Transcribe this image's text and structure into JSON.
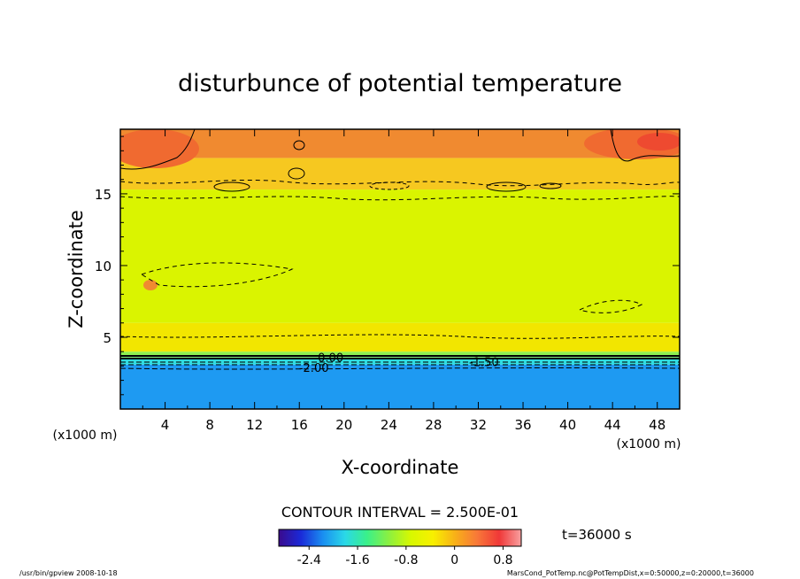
{
  "chart_data": {
    "type": "heatmap",
    "title": "disturbunce of potential temperature",
    "xlabel": "X-coordinate",
    "ylabel": "Z-coordinate",
    "x_unit_left": "(x1000 m)",
    "x_unit_right": "(x1000 m)",
    "xlim": [
      0,
      50
    ],
    "ylim": [
      0,
      19.5
    ],
    "x_ticks": [
      4,
      8,
      12,
      16,
      20,
      24,
      28,
      32,
      36,
      40,
      44,
      48
    ],
    "x_tick_labels": [
      "4",
      "8",
      "12",
      "16",
      "20",
      "24",
      "28",
      "32",
      "36",
      "40",
      "44",
      "48"
    ],
    "y_ticks": [
      5,
      10,
      15
    ],
    "y_tick_labels": [
      "5",
      "10",
      "15"
    ],
    "contour_interval_text": "CONTOUR INTERVAL = 2.500E-01",
    "time_text": "t=36000 s",
    "contour_labels": [
      {
        "text": "-2.00",
        "x": 17.3,
        "z": 2.9
      },
      {
        "text": "0.00",
        "x": 18.8,
        "z": 3.6
      },
      {
        "text": "-1.50",
        "x": 32.5,
        "z": 3.3
      }
    ],
    "colorbar": {
      "range": [
        -2.9,
        1.1
      ],
      "ticks": [
        -2.4,
        -1.6,
        -0.8,
        0,
        0.8
      ],
      "tick_labels": [
        "-2.4",
        "-1.6",
        "-0.8",
        "0",
        "0.8"
      ],
      "colors": [
        "#3a0a8c",
        "#1a2ad8",
        "#1a8ef0",
        "#2ad8e8",
        "#3af08a",
        "#8cf040",
        "#d8f800",
        "#f8f000",
        "#f8b018",
        "#f87838",
        "#f03838",
        "#f8a0a0"
      ]
    },
    "field_zones": [
      {
        "z_from": 0,
        "z_to": 3.1,
        "value": -2.2,
        "color": "#1e9af2"
      },
      {
        "z_from": 3.1,
        "z_to": 3.6,
        "value": -1.4,
        "color": "#30dce0"
      },
      {
        "z_from": 3.6,
        "z_to": 4.0,
        "value": -0.6,
        "color": "#8cf050"
      },
      {
        "z_from": 4.0,
        "z_to": 6.0,
        "value": 0.0,
        "color": "#f2e600"
      },
      {
        "z_from": 6.0,
        "z_to": 15.3,
        "value": -0.1,
        "color": "#daf400"
      },
      {
        "z_from": 15.3,
        "z_to": 17.5,
        "value": 0.2,
        "color": "#f6c820"
      },
      {
        "z_from": 17.5,
        "z_to": 19.5,
        "value": 0.5,
        "color": "#f08a30"
      }
    ],
    "footer_left": "/usr/bin/gpview   2008-10-18",
    "footer_right": "MarsCond_PotTemp.nc@PotTempDist,x=0:50000,z=0:20000,t=36000"
  }
}
